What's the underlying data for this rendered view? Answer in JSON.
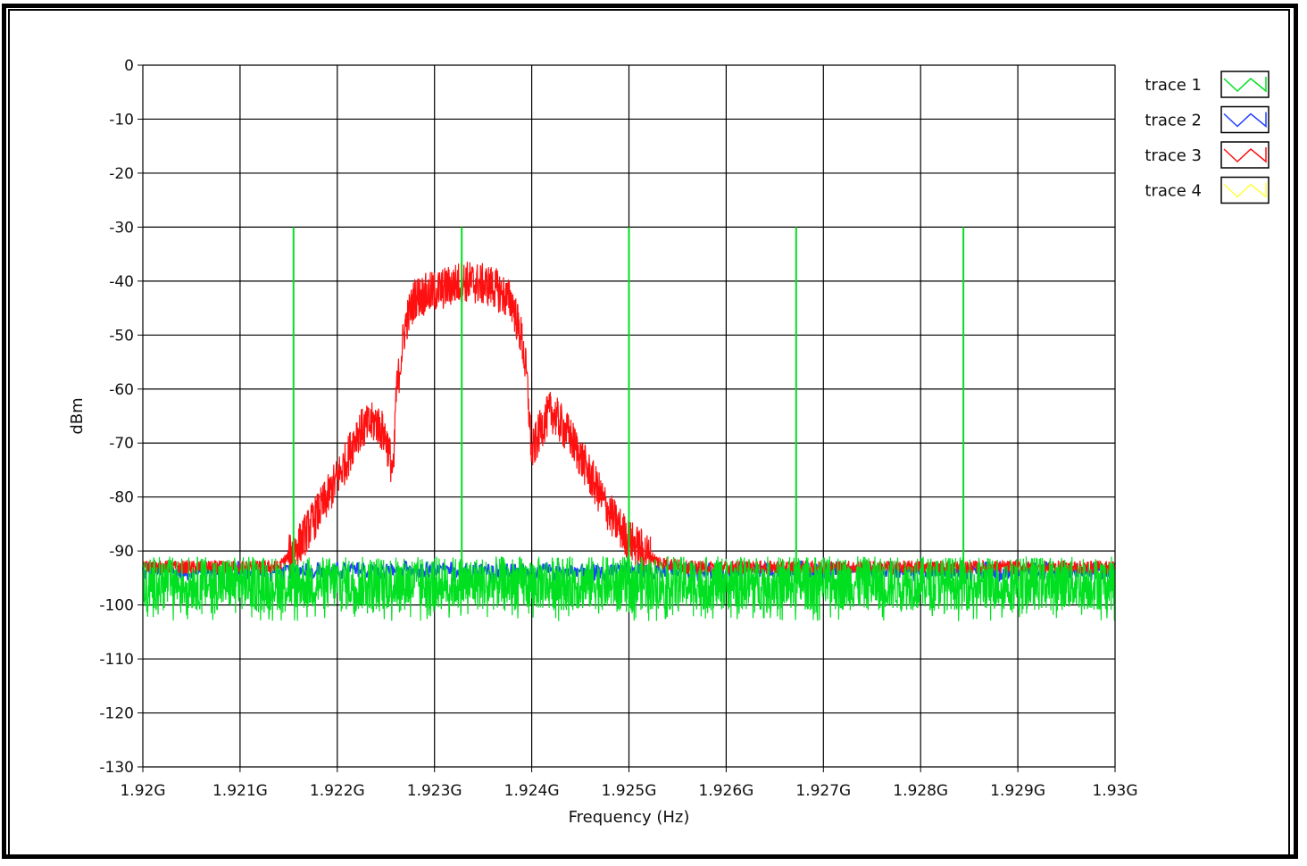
{
  "chart_data": {
    "type": "line",
    "xlabel": "Frequency (Hz)",
    "ylabel": "dBm",
    "xlim": [
      1.92,
      1.93
    ],
    "ylim": [
      -130,
      0
    ],
    "x_unit": "GHz",
    "grid": true,
    "legend_position": "right",
    "x_ticks": [
      1.92,
      1.921,
      1.922,
      1.923,
      1.924,
      1.925,
      1.926,
      1.927,
      1.928,
      1.929,
      1.93
    ],
    "x_tick_labels": [
      "1.92G",
      "1.921G",
      "1.922G",
      "1.923G",
      "1.924G",
      "1.925G",
      "1.926G",
      "1.927G",
      "1.928G",
      "1.929G",
      "1.93G"
    ],
    "y_ticks": [
      0,
      -10,
      -20,
      -30,
      -40,
      -50,
      -60,
      -70,
      -80,
      -90,
      -100,
      -110,
      -120,
      -130
    ],
    "y_tick_labels": [
      "0",
      "-10",
      "-20",
      "-30",
      "-40",
      "-50",
      "-60",
      "-70",
      "-80",
      "-90",
      "-100",
      "-110",
      "-120",
      "-130"
    ],
    "series": [
      {
        "name": "trace 1",
        "color": "#00e020",
        "noise_floor": -96,
        "noise_band": [
          -101,
          -91
        ],
        "peaks": [
          {
            "x": 1.92155,
            "y": -30
          },
          {
            "x": 1.92328,
            "y": -30
          },
          {
            "x": 1.925,
            "y": -30
          },
          {
            "x": 1.92672,
            "y": -30
          },
          {
            "x": 1.92844,
            "y": -30
          }
        ]
      },
      {
        "name": "trace 2",
        "color": "#2040ff",
        "noise_floor": -93
      },
      {
        "name": "trace 3",
        "color": "#ff1010",
        "noise_floor": -93,
        "profile": [
          {
            "x": 1.9214,
            "y": -93
          },
          {
            "x": 1.9216,
            "y": -89
          },
          {
            "x": 1.9219,
            "y": -80
          },
          {
            "x": 1.9221,
            "y": -73
          },
          {
            "x": 1.9222,
            "y": -68
          },
          {
            "x": 1.9224,
            "y": -66
          },
          {
            "x": 1.9225,
            "y": -69
          },
          {
            "x": 1.92258,
            "y": -76
          },
          {
            "x": 1.9226,
            "y": -62
          },
          {
            "x": 1.9227,
            "y": -48
          },
          {
            "x": 1.9228,
            "y": -43
          },
          {
            "x": 1.923,
            "y": -42
          },
          {
            "x": 1.9233,
            "y": -40
          },
          {
            "x": 1.9236,
            "y": -41
          },
          {
            "x": 1.9238,
            "y": -44
          },
          {
            "x": 1.9239,
            "y": -51
          },
          {
            "x": 1.92395,
            "y": -58
          },
          {
            "x": 1.924,
            "y": -72
          },
          {
            "x": 1.9241,
            "y": -67
          },
          {
            "x": 1.9242,
            "y": -64
          },
          {
            "x": 1.9244,
            "y": -69
          },
          {
            "x": 1.9246,
            "y": -76
          },
          {
            "x": 1.9248,
            "y": -83
          },
          {
            "x": 1.925,
            "y": -88
          },
          {
            "x": 1.9253,
            "y": -92
          },
          {
            "x": 1.9256,
            "y": -93
          }
        ]
      },
      {
        "name": "trace 4",
        "color": "#ffff40"
      }
    ]
  }
}
